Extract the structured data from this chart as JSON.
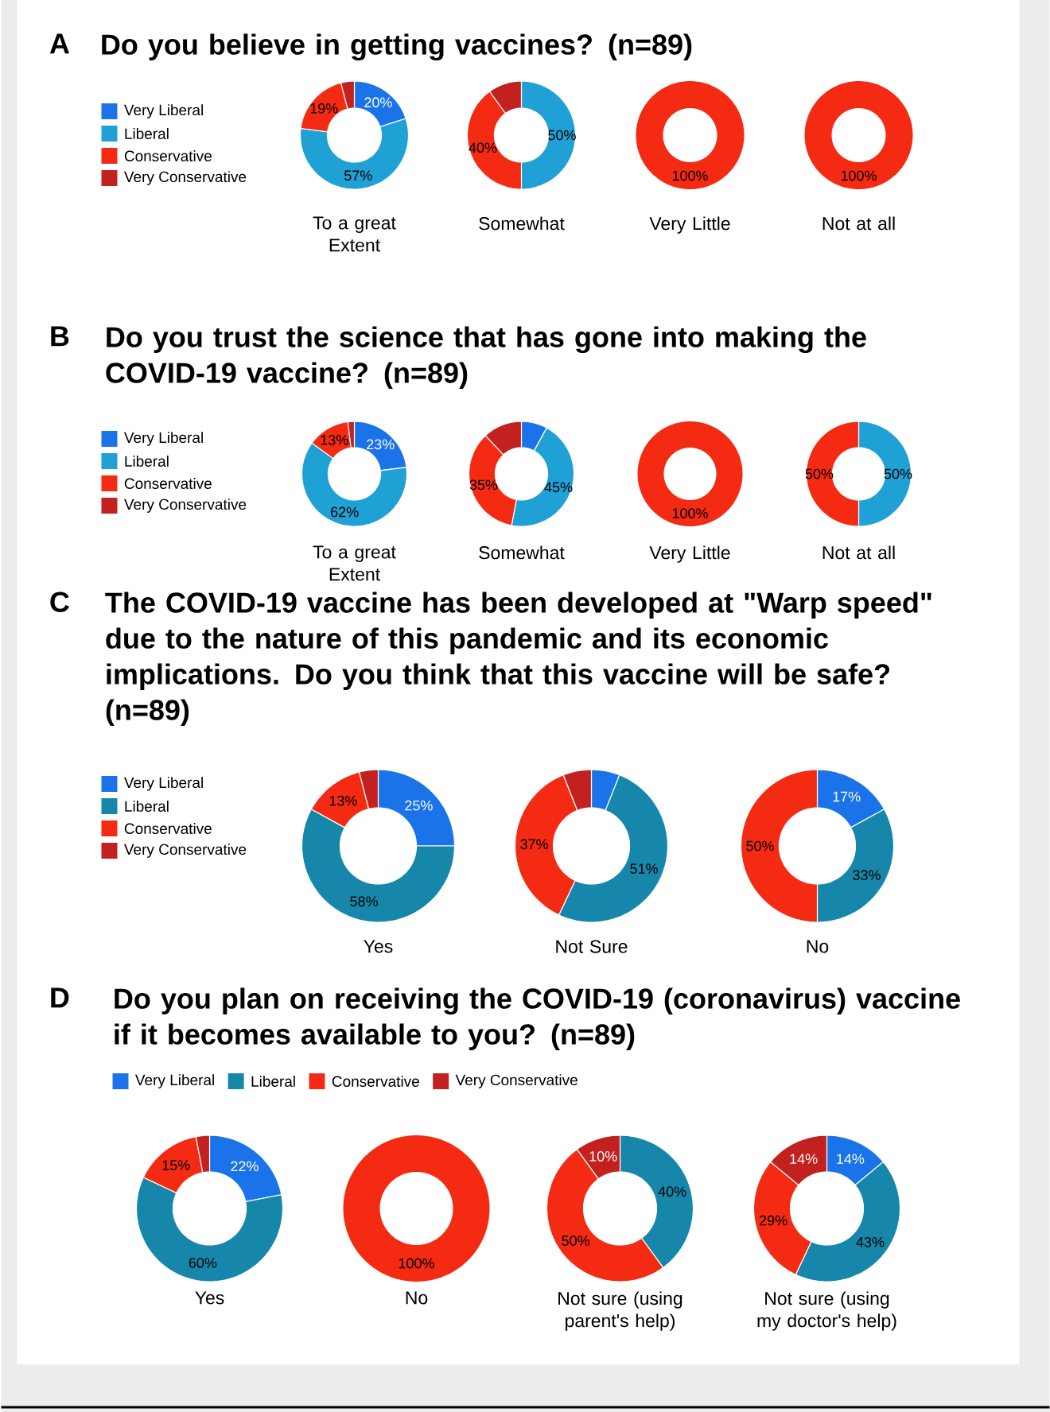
{
  "chart_data": [
    {
      "type": "donut",
      "title": "Do you believe in getting vaccines? (n=89)",
      "annotations": [
        "A"
      ],
      "legend": "left",
      "xlabel": "To a great Extent",
      "categories": [
        "Very Liberal",
        "Liberal",
        "Conservative",
        "Very Conservative"
      ],
      "values": [
        20,
        57,
        19,
        4
      ],
      "colors": [
        "#1a73e8",
        "#1fa1d6",
        "#f52a12",
        "#c2211f"
      ],
      "value_labels": [
        "20%",
        "57%",
        "19%",
        null
      ]
    },
    {
      "type": "donut",
      "xlabel": "Somewhat",
      "categories": [
        null,
        null,
        null,
        null
      ],
      "values": [
        0,
        50,
        40,
        10
      ],
      "colors": [
        "#1a73e8",
        "#1fa1d6",
        "#f52a12",
        "#c2211f"
      ],
      "value_labels": [
        null,
        "50%",
        "40%",
        null
      ]
    },
    {
      "type": "donut",
      "xlabel": "Very Little",
      "categories": [
        null,
        null,
        null,
        null
      ],
      "values": [
        0,
        0,
        100,
        0
      ],
      "colors": [
        "#1a73e8",
        "#1fa1d6",
        "#f52a12",
        "#c2211f"
      ],
      "value_labels": [
        null,
        null,
        "100%",
        null
      ]
    },
    {
      "type": "donut",
      "xlabel": "Not at all",
      "categories": [
        null,
        null,
        null,
        null
      ],
      "values": [
        0,
        0,
        100,
        0
      ],
      "colors": [
        "#1a73e8",
        "#1fa1d6",
        "#f52a12",
        "#c2211f"
      ],
      "value_labels": [
        null,
        null,
        "100%",
        null
      ]
    },
    {
      "type": "donut",
      "title": "Do you trust the science that has gone into making the COVID-19 vaccine? (n=89)",
      "annotations": [
        "B"
      ],
      "legend": "left",
      "xlabel": "To a great Extent",
      "categories": [
        "Very Liberal",
        "Liberal",
        "Conservative",
        "Very Conservative"
      ],
      "values": [
        23,
        62,
        13,
        2
      ],
      "colors": [
        "#1a73e8",
        "#1fa1d6",
        "#f52a12",
        "#c2211f"
      ],
      "value_labels": [
        "23%",
        "62%",
        "13%",
        null
      ]
    },
    {
      "type": "donut",
      "xlabel": "Somewhat",
      "categories": [
        null,
        null,
        null,
        null
      ],
      "values": [
        8,
        45,
        35,
        12
      ],
      "colors": [
        "#1a73e8",
        "#1fa1d6",
        "#f52a12",
        "#c2211f"
      ],
      "value_labels": [
        null,
        "45%",
        "35%",
        null
      ]
    },
    {
      "type": "donut",
      "xlabel": "Very Little",
      "categories": [
        null,
        null,
        null,
        null
      ],
      "values": [
        0,
        0,
        100,
        0
      ],
      "colors": [
        "#1a73e8",
        "#1fa1d6",
        "#f52a12",
        "#c2211f"
      ],
      "value_labels": [
        null,
        null,
        "100%",
        null
      ]
    },
    {
      "type": "donut",
      "xlabel": "Not at all",
      "categories": [
        null,
        null,
        null,
        null
      ],
      "values": [
        0,
        50,
        50,
        0
      ],
      "colors": [
        "#1a73e8",
        "#1fa1d6",
        "#f52a12",
        "#c2211f"
      ],
      "value_labels": [
        null,
        "50%",
        "50%",
        null
      ]
    },
    {
      "type": "donut",
      "title": "The COVID-19 vaccine has been developed at \"Warp speed\" due to the nature of this pandemic and its economic implications. Do you think that this vaccine will be safe? (n=89)",
      "annotations": [
        "C"
      ],
      "legend": "left",
      "xlabel": "Yes",
      "categories": [
        "Very Liberal",
        "Liberal",
        "Conservative",
        "Very Conservative"
      ],
      "values": [
        25,
        58,
        13,
        4
      ],
      "colors": [
        "#1a73e8",
        "#1687aa",
        "#f52a12",
        "#c2211f"
      ],
      "value_labels": [
        "25%",
        "58%",
        "13%",
        null
      ]
    },
    {
      "type": "donut",
      "xlabel": "Not Sure",
      "categories": [
        null,
        null,
        null,
        null
      ],
      "values": [
        6,
        51,
        37,
        6
      ],
      "colors": [
        "#1a73e8",
        "#1687aa",
        "#f52a12",
        "#c2211f"
      ],
      "value_labels": [
        null,
        "51%",
        "37%",
        null
      ]
    },
    {
      "type": "donut",
      "xlabel": "No",
      "categories": [
        null,
        null,
        null,
        null
      ],
      "values": [
        17,
        33,
        50,
        0
      ],
      "colors": [
        "#1a73e8",
        "#1687aa",
        "#f52a12",
        "#c2211f"
      ],
      "value_labels": [
        "17%",
        "33%",
        "50%",
        null
      ]
    },
    {
      "type": "donut",
      "title": "Do you plan on receiving the COVID-19 (coronavirus) vaccine if it becomes available to you? (n=89)",
      "annotations": [
        "D"
      ],
      "legend": "top",
      "xlabel": "Yes",
      "categories": [
        "Very Liberal",
        "Liberal",
        "Conservative",
        "Very Conservative"
      ],
      "values": [
        22,
        60,
        15,
        3
      ],
      "colors": [
        "#1a73e8",
        "#1687aa",
        "#f52a12",
        "#c2211f"
      ],
      "value_labels": [
        "22%",
        "60%",
        "15%",
        null
      ]
    },
    {
      "type": "donut",
      "xlabel": "No",
      "categories": [
        null,
        null,
        null,
        null
      ],
      "values": [
        0,
        0,
        100,
        0
      ],
      "colors": [
        "#1a73e8",
        "#1687aa",
        "#f52a12",
        "#c2211f"
      ],
      "value_labels": [
        null,
        null,
        "100%",
        null
      ]
    },
    {
      "type": "donut",
      "xlabel": "Not sure (using parent's help)",
      "categories": [
        null,
        null,
        null,
        null
      ],
      "values": [
        0,
        40,
        50,
        10
      ],
      "colors": [
        "#1a73e8",
        "#1687aa",
        "#f52a12",
        "#c2211f"
      ],
      "value_labels": [
        null,
        "40%",
        "50%",
        "10%"
      ]
    },
    {
      "type": "donut",
      "xlabel": "Not sure (using my doctor's help)",
      "categories": [
        null,
        null,
        null,
        null
      ],
      "values": [
        14,
        43,
        29,
        14
      ],
      "colors": [
        "#1a73e8",
        "#1687aa",
        "#f52a12",
        "#c2211f"
      ],
      "value_labels": [
        "14%",
        "43%",
        "29%",
        "14%"
      ]
    }
  ]
}
